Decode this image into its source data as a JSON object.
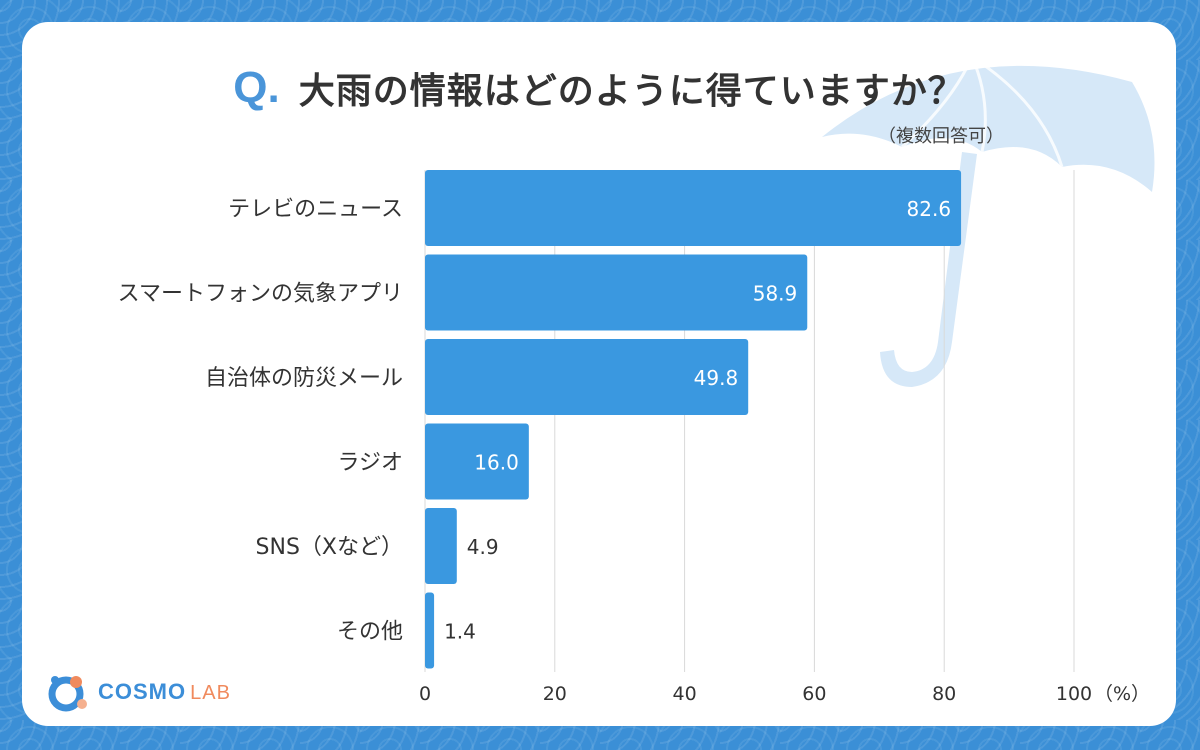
{
  "header": {
    "q_mark": "Q.",
    "title": "大雨の情報はどのように得ていますか？",
    "subtitle": "（複数回答可）"
  },
  "brand": {
    "logo_main": "COSMO",
    "logo_sub": "LAB"
  },
  "colors": {
    "bar": "#3a98e0",
    "accent": "#4a95d9",
    "background": "#3b8fd6",
    "logo_orange": "#f08a5d"
  },
  "chart_data": {
    "type": "bar",
    "orientation": "horizontal",
    "title": "大雨の情報はどのように得ていますか？",
    "categories": [
      "テレビのニュース",
      "スマートフォンの気象アプリ",
      "自治体の防災メール",
      "ラジオ",
      "SNS（Xなど）",
      "その他"
    ],
    "values": [
      82.6,
      58.9,
      49.8,
      16.0,
      4.9,
      1.4
    ],
    "value_labels": [
      "82.6",
      "58.9",
      "49.8",
      "16.0",
      "4.9",
      "1.4"
    ],
    "xlim": [
      0,
      100
    ],
    "xticks": [
      "0",
      "20",
      "40",
      "60",
      "80",
      "100"
    ],
    "xunit": "（%）",
    "grid": true
  }
}
